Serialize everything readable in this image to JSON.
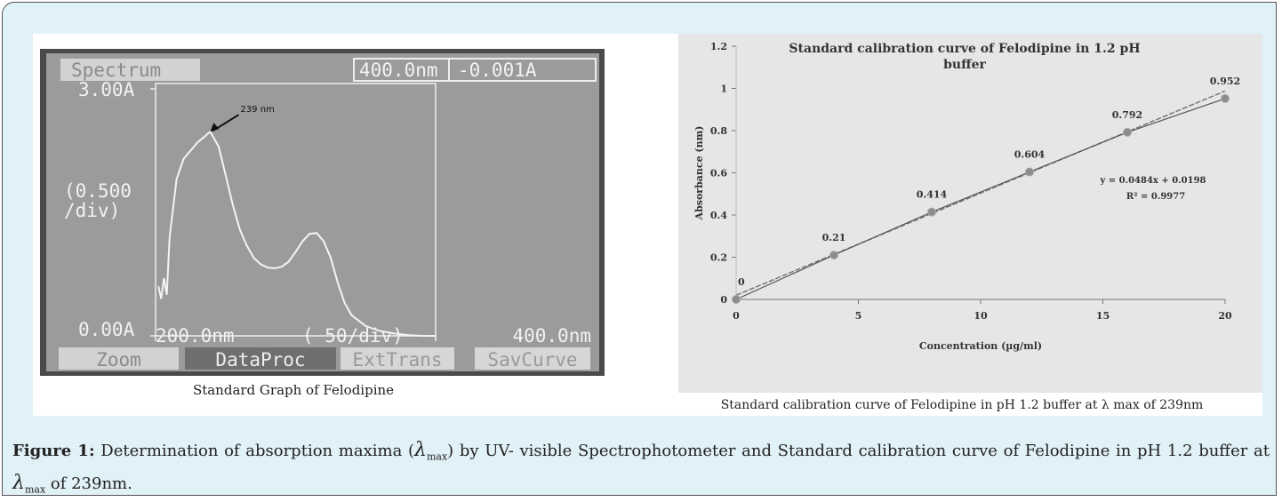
{
  "chart_data": [
    {
      "type": "line",
      "header": [
        "Spectrum",
        "400.0nm",
        "-0.001A"
      ],
      "x": [
        202,
        204,
        206,
        208,
        210,
        215,
        220,
        225,
        230,
        235,
        239,
        245,
        250,
        255,
        260,
        265,
        270,
        275,
        280,
        285,
        290,
        295,
        300,
        305,
        310,
        315,
        320,
        325,
        330,
        335,
        340,
        350,
        360,
        370,
        380,
        390,
        400
      ],
      "values": [
        0.6,
        0.45,
        0.7,
        0.5,
        1.2,
        1.9,
        2.15,
        2.25,
        2.35,
        2.42,
        2.48,
        2.3,
        1.95,
        1.6,
        1.3,
        1.1,
        0.95,
        0.87,
        0.83,
        0.82,
        0.84,
        0.9,
        1.02,
        1.15,
        1.24,
        1.25,
        1.15,
        0.95,
        0.65,
        0.4,
        0.25,
        0.12,
        0.06,
        0.03,
        0.01,
        0,
        0
      ],
      "color": "#f4f4f4",
      "xlim": [
        200,
        400
      ],
      "ylim": [
        0,
        3
      ],
      "xticks": [
        {
          "value": 200,
          "label": "200.0nm"
        },
        {
          "value": 400,
          "label": "400.0nm"
        }
      ],
      "yticks": [
        {
          "value": 0,
          "label": "0.00A"
        },
        {
          "value": 3,
          "label": "3.00A"
        }
      ],
      "y_div_label": [
        "(0.500",
        "/div)"
      ],
      "x_div_label": "( 50/div)",
      "annotation": {
        "text": "239 nm",
        "x": 239,
        "y": 2.48
      },
      "buttons": [
        "Zoom",
        "DataProc",
        "ExtTrans",
        "SavCurve"
      ],
      "caption": "Standard Graph of Felodipine"
    },
    {
      "type": "scatter",
      "title": "Standard calibration curve of Felodipine in 1.2 pH buffer",
      "x_label": "Concentration (µg/ml)",
      "y_label": "Absorbance (nm)",
      "x": [
        0,
        4,
        8,
        12,
        16,
        20
      ],
      "values": [
        0,
        0.21,
        0.414,
        0.604,
        0.792,
        0.952
      ],
      "color": "#8c8c8c",
      "xlim": [
        0,
        20
      ],
      "ylim": [
        0,
        1.2
      ],
      "xticks": [
        0,
        5,
        10,
        15,
        20
      ],
      "yticks": [
        0,
        0.2,
        0.4,
        0.6,
        0.8,
        1,
        1.2
      ],
      "trendline": {
        "slope": 0.0484,
        "intercept": 0.0198,
        "label": "y = 0.0484x + 0.0198",
        "r2_label": "R² = 0.9977"
      },
      "caption": "Standard calibration curve of Felodipine in pH 1.2 buffer at λ max of 239nm"
    }
  ],
  "figure_caption": {
    "label": "Figure 1:",
    "parts": [
      "Determination of absorption maxima (",
      "λ",
      "max",
      ") by UV- visible Spectrophotometer and Standard calibration curve of Felodipine in pH 1.2 buffer at ",
      "λ",
      "max",
      " of 239nm."
    ]
  }
}
